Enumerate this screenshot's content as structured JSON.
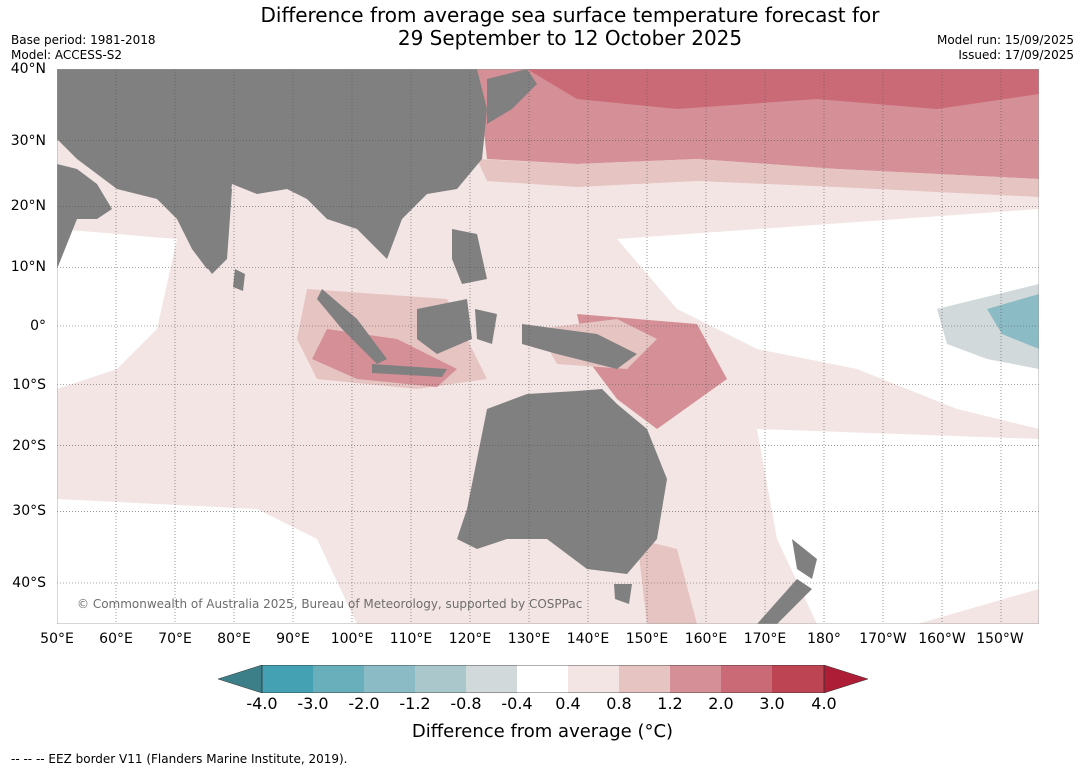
{
  "title_line1": "Difference from average sea surface temperature forecast for",
  "title_line2": "29 September to 12 October 2025",
  "base_period": "Base period: 1981-2018",
  "model": "Model: ACCESS-S2",
  "model_run": "Model run: 15/09/2025",
  "issued": "Issued: 17/09/2025",
  "lat_labels": [
    "40°N",
    "30°N",
    "20°N",
    "10°N",
    "0°",
    "10°S",
    "20°S",
    "30°S",
    "40°S"
  ],
  "lon_labels": [
    "50°E",
    "60°E",
    "70°E",
    "80°E",
    "90°E",
    "100°E",
    "110°E",
    "120°E",
    "130°E",
    "140°E",
    "150°E",
    "160°E",
    "170°E",
    "180°",
    "170°W",
    "160°W",
    "150°W"
  ],
  "copyright": "© Commonwealth of Australia 2025, Bureau of Meteorology, supported by COSPPac",
  "colorbar": {
    "ticks": [
      "-4.0",
      "-3.0",
      "-2.0",
      "-1.2",
      "-0.8",
      "-0.4",
      "0.4",
      "0.8",
      "1.2",
      "2.0",
      "3.0",
      "4.0"
    ],
    "colors": [
      "#3c7f88",
      "#44a1b4",
      "#69aebb",
      "#8bbbc4",
      "#aac8cc",
      "#d2d9db",
      "#ffffff",
      "#f3e5e4",
      "#e6c4c2",
      "#d58f97",
      "#c96a76",
      "#bd4553",
      "#ae1d36"
    ],
    "label": "Difference from average (°C)"
  },
  "footnote": "--  --  -- EEZ border V11 (Flanders Marine Institute, 2019).",
  "colors": {
    "land": "#808080",
    "grid": "#555555"
  }
}
